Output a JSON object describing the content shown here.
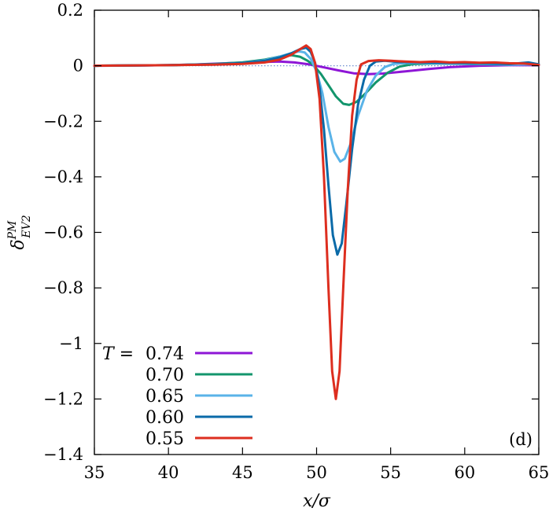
{
  "chart_data": {
    "type": "line",
    "panel_label": "(d)",
    "xlabel": "x/σ",
    "ylabel": "δ^PM_EV2",
    "xlim": [
      35,
      65
    ],
    "ylim": [
      -1.4,
      0.2
    ],
    "x_ticks": [
      {
        "value": 35,
        "label": "35"
      },
      {
        "value": 40,
        "label": "40"
      },
      {
        "value": 45,
        "label": "45"
      },
      {
        "value": 50,
        "label": "50"
      },
      {
        "value": 55,
        "label": "55"
      },
      {
        "value": 60,
        "label": "60"
      },
      {
        "value": 65,
        "label": "65"
      }
    ],
    "y_ticks": [
      {
        "value": 0.2,
        "label": "0.2"
      },
      {
        "value": 0,
        "label": "0"
      },
      {
        "value": -0.2,
        "label": "−0.2"
      },
      {
        "value": -0.4,
        "label": "−0.4"
      },
      {
        "value": -0.6,
        "label": "−0.6"
      },
      {
        "value": -0.8,
        "label": "−0.8"
      },
      {
        "value": -1,
        "label": "−1"
      },
      {
        "value": -1.2,
        "label": "−1.2"
      },
      {
        "value": -1.4,
        "label": "−1.4"
      }
    ],
    "grid": false,
    "legend_placement": "bottom-left",
    "legend_title": "T =",
    "reference_line": {
      "y": 0,
      "style": "dotted",
      "color": "#6f8fd0"
    },
    "series": [
      {
        "name": "0.74",
        "color": "#8e16d6",
        "points": [
          [
            35,
            0
          ],
          [
            38,
            0.001
          ],
          [
            40,
            0.002
          ],
          [
            42,
            0.005
          ],
          [
            44,
            0.009
          ],
          [
            46,
            0.013
          ],
          [
            47.5,
            0.015
          ],
          [
            48.5,
            0.012
          ],
          [
            49.5,
            0.005
          ],
          [
            50.5,
            -0.006
          ],
          [
            51.5,
            -0.017
          ],
          [
            52.5,
            -0.027
          ],
          [
            53.5,
            -0.03
          ],
          [
            54.5,
            -0.028
          ],
          [
            56,
            -0.02
          ],
          [
            57.5,
            -0.012
          ],
          [
            59,
            -0.005
          ],
          [
            61,
            0
          ],
          [
            63,
            0.002
          ],
          [
            65,
            0.002
          ]
        ]
      },
      {
        "name": "0.70",
        "color": "#13956c",
        "points": [
          [
            35,
            0
          ],
          [
            40,
            0.002
          ],
          [
            43,
            0.006
          ],
          [
            45,
            0.012
          ],
          [
            46.5,
            0.022
          ],
          [
            47.5,
            0.033
          ],
          [
            48.3,
            0.038
          ],
          [
            48.9,
            0.032
          ],
          [
            49.4,
            0.018
          ],
          [
            49.8,
            0.002
          ],
          [
            50.3,
            -0.03
          ],
          [
            50.8,
            -0.07
          ],
          [
            51.3,
            -0.11
          ],
          [
            51.8,
            -0.137
          ],
          [
            52.2,
            -0.141
          ],
          [
            52.7,
            -0.13
          ],
          [
            53.3,
            -0.1
          ],
          [
            54,
            -0.06
          ],
          [
            54.8,
            -0.025
          ],
          [
            55.6,
            -0.003
          ],
          [
            56.5,
            0.006
          ],
          [
            58,
            0.008
          ],
          [
            60,
            0.007
          ],
          [
            62,
            0.005
          ],
          [
            63,
            0.004
          ],
          [
            64,
            0.008
          ],
          [
            65,
            0.005
          ]
        ]
      },
      {
        "name": "0.65",
        "color": "#5ab3e8",
        "points": [
          [
            35,
            0
          ],
          [
            40,
            0.002
          ],
          [
            43,
            0.005
          ],
          [
            45,
            0.01
          ],
          [
            46.5,
            0.02
          ],
          [
            47.5,
            0.033
          ],
          [
            48.3,
            0.045
          ],
          [
            48.8,
            0.052
          ],
          [
            49.2,
            0.048
          ],
          [
            49.6,
            0.025
          ],
          [
            50,
            -0.02
          ],
          [
            50.4,
            -0.1
          ],
          [
            50.8,
            -0.22
          ],
          [
            51.2,
            -0.31
          ],
          [
            51.6,
            -0.345
          ],
          [
            51.9,
            -0.335
          ],
          [
            52.3,
            -0.28
          ],
          [
            52.8,
            -0.18
          ],
          [
            53.4,
            -0.09
          ],
          [
            54,
            -0.035
          ],
          [
            54.6,
            -0.005
          ],
          [
            55.2,
            0.007
          ],
          [
            56,
            0.01
          ],
          [
            57,
            0.01
          ],
          [
            59,
            0.008
          ],
          [
            61,
            0.007
          ],
          [
            63,
            0.004
          ],
          [
            65,
            0.005
          ]
        ]
      },
      {
        "name": "0.60",
        "color": "#0a6aa8",
        "points": [
          [
            35,
            0
          ],
          [
            40,
            0.002
          ],
          [
            43,
            0.005
          ],
          [
            45,
            0.01
          ],
          [
            46.5,
            0.018
          ],
          [
            47.5,
            0.03
          ],
          [
            48.3,
            0.045
          ],
          [
            48.9,
            0.06
          ],
          [
            49.3,
            0.065
          ],
          [
            49.6,
            0.05
          ],
          [
            49.9,
            0.01
          ],
          [
            50.2,
            -0.08
          ],
          [
            50.5,
            -0.23
          ],
          [
            50.8,
            -0.43
          ],
          [
            51.1,
            -0.61
          ],
          [
            51.4,
            -0.68
          ],
          [
            51.7,
            -0.64
          ],
          [
            52,
            -0.5
          ],
          [
            52.4,
            -0.3
          ],
          [
            52.8,
            -0.14
          ],
          [
            53.2,
            -0.05
          ],
          [
            53.6,
            0
          ],
          [
            54,
            0.015
          ],
          [
            54.6,
            0.018
          ],
          [
            55.5,
            0.014
          ],
          [
            57,
            0.012
          ],
          [
            59,
            0.01
          ],
          [
            61,
            0.009
          ],
          [
            63,
            0.006
          ],
          [
            64.3,
            0.012
          ],
          [
            65,
            0.005
          ]
        ]
      },
      {
        "name": "0.55",
        "color": "#dd2e1f",
        "points": [
          [
            35,
            0
          ],
          [
            40,
            0.002
          ],
          [
            43,
            0.004
          ],
          [
            45,
            0.007
          ],
          [
            46.5,
            0.012
          ],
          [
            47.5,
            0.022
          ],
          [
            48.3,
            0.04
          ],
          [
            48.9,
            0.06
          ],
          [
            49.3,
            0.073
          ],
          [
            49.6,
            0.06
          ],
          [
            49.9,
            0.01
          ],
          [
            50.2,
            -0.12
          ],
          [
            50.5,
            -0.4
          ],
          [
            50.8,
            -0.8
          ],
          [
            51.05,
            -1.1
          ],
          [
            51.3,
            -1.2
          ],
          [
            51.55,
            -1.1
          ],
          [
            51.8,
            -0.8
          ],
          [
            52.1,
            -0.45
          ],
          [
            52.4,
            -0.18
          ],
          [
            52.7,
            -0.05
          ],
          [
            53,
            0.005
          ],
          [
            53.5,
            0.017
          ],
          [
            54.2,
            0.02
          ],
          [
            55,
            0.018
          ],
          [
            56,
            0.015
          ],
          [
            57,
            0.013
          ],
          [
            58,
            0.015
          ],
          [
            59,
            0.012
          ],
          [
            60,
            0.013
          ],
          [
            61,
            0.011
          ],
          [
            62,
            0.012
          ],
          [
            63,
            0.009
          ],
          [
            64,
            0.008
          ],
          [
            65,
            0.003
          ]
        ]
      }
    ]
  }
}
